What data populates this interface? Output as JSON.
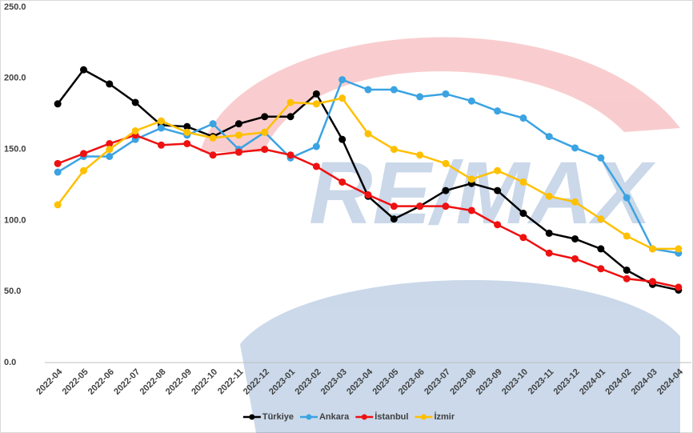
{
  "chart_data": {
    "type": "line",
    "watermark": "RE/MAX",
    "categories": [
      "2022-04",
      "2022-05",
      "2022-06",
      "2022-07",
      "2022-08",
      "2022-09",
      "2022-10",
      "2022-11",
      "2022-12",
      "2023-01",
      "2023-02",
      "2023-03",
      "2023-04",
      "2023-05",
      "2023-06",
      "2023-07",
      "2023-08",
      "2023-09",
      "2023-10",
      "2023-11",
      "2023-12",
      "2024-01",
      "2024-02",
      "2024-03",
      "2024-04"
    ],
    "series": [
      {
        "name": "Türkiye",
        "color": "#000000",
        "values": [
          182,
          206,
          196,
          183,
          167,
          166,
          159,
          168,
          173,
          173,
          189,
          157,
          117,
          101,
          110,
          121,
          126,
          121,
          105,
          91,
          87,
          80,
          65,
          55,
          51
        ]
      },
      {
        "name": "Ankara",
        "color": "#3ba3e2",
        "values": [
          134,
          145,
          145,
          157,
          165,
          160,
          168,
          150,
          162,
          144,
          152,
          199,
          192,
          192,
          187,
          189,
          184,
          177,
          172,
          159,
          151,
          144,
          116,
          80,
          77
        ]
      },
      {
        "name": "İstanbul",
        "color": "#ee1111",
        "values": [
          140,
          147,
          154,
          160,
          153,
          154,
          146,
          148,
          150,
          146,
          138,
          127,
          118,
          110,
          110,
          110,
          107,
          97,
          88,
          77,
          73,
          66,
          59,
          57,
          53
        ]
      },
      {
        "name": "İzmir",
        "color": "#ffc000",
        "values": [
          111,
          135,
          150,
          163,
          170,
          162,
          158,
          160,
          162,
          183,
          182,
          186,
          161,
          150,
          146,
          140,
          129,
          135,
          127,
          117,
          113,
          101,
          89,
          80,
          80
        ]
      }
    ],
    "ylim": [
      0,
      250
    ],
    "yticks": [
      {
        "value": 0,
        "label": "0.0"
      },
      {
        "value": 50,
        "label": "50.0"
      },
      {
        "value": 100,
        "label": "100.0"
      },
      {
        "value": 150,
        "label": "150.0"
      },
      {
        "value": 200,
        "label": "200.0"
      },
      {
        "value": 250,
        "label": "250.0"
      }
    ],
    "grid": false,
    "legend": "bottom"
  }
}
